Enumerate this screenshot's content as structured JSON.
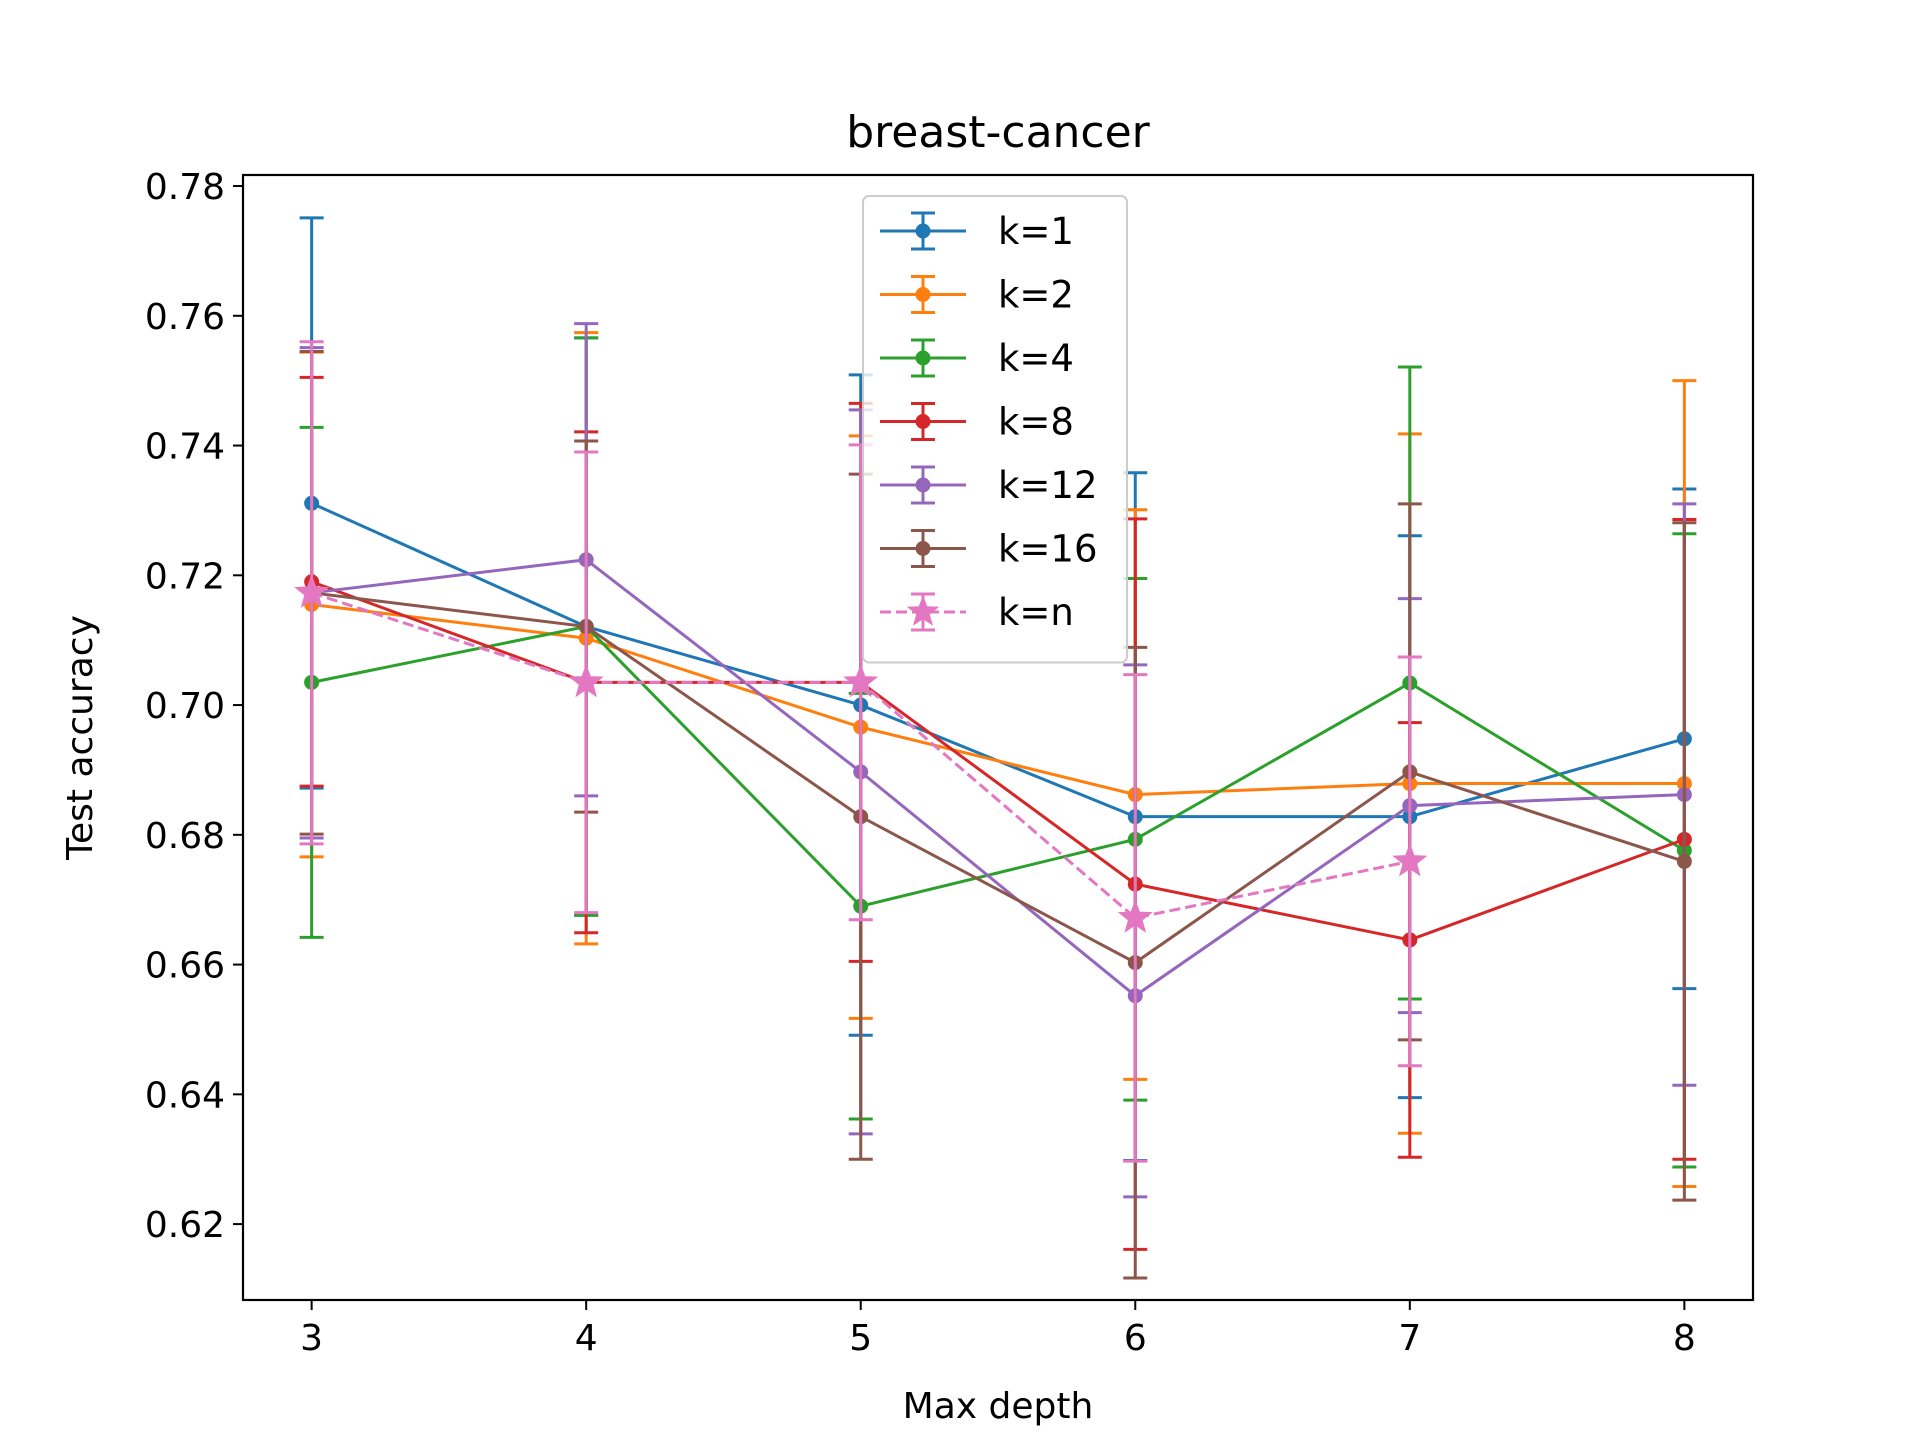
{
  "chart_data": {
    "type": "line",
    "title": "breast-cancer",
    "xlabel": "Max depth",
    "ylabel": "Test accuracy",
    "xlim": [
      2.75,
      8.25
    ],
    "ylim": [
      0.6083,
      0.7817
    ],
    "x": [
      3,
      4,
      5,
      6,
      7,
      8
    ],
    "xticks": [
      "3",
      "4",
      "5",
      "6",
      "7",
      "8"
    ],
    "yticks": [
      0.62,
      0.64,
      0.66,
      0.68,
      0.7,
      0.72,
      0.74,
      0.76,
      0.78
    ],
    "ytick_labels": [
      "0.62",
      "0.64",
      "0.66",
      "0.68",
      "0.70",
      "0.72",
      "0.74",
      "0.76",
      "0.78"
    ],
    "legend_position": "upper center",
    "grid": false,
    "series": [
      {
        "name": "k=1",
        "color": "#1f77b4",
        "marker": "circle",
        "linestyle": "solid",
        "y": [
          0.7311,
          0.7121,
          0.7,
          0.6828,
          0.6828,
          0.6948
        ],
        "ylow": [
          0.6872,
          0.6676,
          0.6491,
          0.6298,
          0.6395,
          0.6563
        ],
        "yhigh": [
          0.7751,
          0.7566,
          0.7509,
          0.7358,
          0.7261,
          0.7333
        ]
      },
      {
        "name": "k=2",
        "color": "#ff7f0e",
        "marker": "circle",
        "linestyle": "solid",
        "y": [
          0.7155,
          0.7103,
          0.6966,
          0.6862,
          0.6879,
          0.6879
        ],
        "ylow": [
          0.6766,
          0.6632,
          0.6517,
          0.6423,
          0.634,
          0.6258
        ],
        "yhigh": [
          0.7544,
          0.7574,
          0.7415,
          0.7301,
          0.7418,
          0.75
        ]
      },
      {
        "name": "k=4",
        "color": "#2ca02c",
        "marker": "circle",
        "linestyle": "solid",
        "y": [
          0.7035,
          0.7121,
          0.669,
          0.6793,
          0.7034,
          0.6776
        ],
        "ylow": [
          0.6642,
          0.6676,
          0.6362,
          0.6391,
          0.6547,
          0.6288
        ],
        "yhigh": [
          0.7428,
          0.7566,
          0.7018,
          0.7195,
          0.7521,
          0.7264
        ]
      },
      {
        "name": "k=8",
        "color": "#d62728",
        "marker": "circle",
        "linestyle": "solid",
        "y": [
          0.719,
          0.7035,
          0.7035,
          0.6724,
          0.6638,
          0.6793
        ],
        "ylow": [
          0.6875,
          0.6649,
          0.6605,
          0.6161,
          0.6303,
          0.63
        ],
        "yhigh": [
          0.7505,
          0.7421,
          0.7465,
          0.7287,
          0.6973,
          0.7286
        ]
      },
      {
        "name": "k=12",
        "color": "#9467bd",
        "marker": "circle",
        "linestyle": "solid",
        "y": [
          0.7173,
          0.7224,
          0.6897,
          0.6552,
          0.6845,
          0.6862
        ],
        "ylow": [
          0.6795,
          0.686,
          0.6339,
          0.6242,
          0.6526,
          0.6414
        ],
        "yhigh": [
          0.7551,
          0.7588,
          0.7455,
          0.7062,
          0.7164,
          0.731
        ]
      },
      {
        "name": "k=16",
        "color": "#8c564b",
        "marker": "circle",
        "linestyle": "solid",
        "y": [
          0.7173,
          0.7121,
          0.6828,
          0.6603,
          0.6897,
          0.6759
        ],
        "ylow": [
          0.6801,
          0.6835,
          0.63,
          0.6117,
          0.6484,
          0.6237
        ],
        "yhigh": [
          0.7545,
          0.7407,
          0.7356,
          0.7089,
          0.731,
          0.7281
        ]
      },
      {
        "name": "k=n",
        "color": "#e377c2",
        "marker": "star",
        "linestyle": "dashed",
        "y": [
          0.7173,
          0.7035,
          0.7035,
          0.6672,
          0.6759,
          null
        ],
        "ylow": [
          0.6786,
          0.668,
          0.6669,
          0.6297,
          0.6444,
          null
        ],
        "yhigh": [
          0.756,
          0.739,
          0.7401,
          0.7047,
          0.7074,
          null
        ]
      }
    ]
  }
}
